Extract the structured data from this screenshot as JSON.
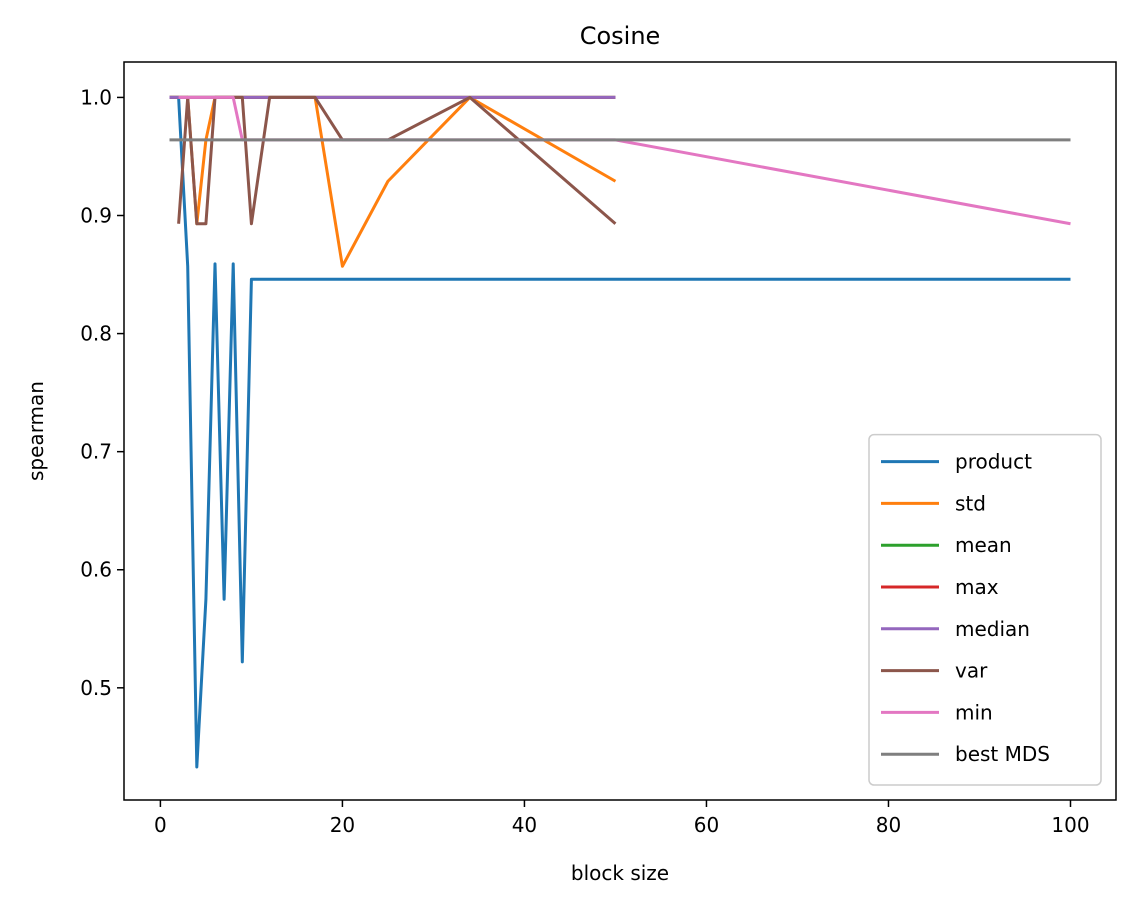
{
  "chart_data": {
    "type": "line",
    "title": "Cosine",
    "xlabel": "block size",
    "ylabel": "spearman",
    "xlim": [
      -4,
      105
    ],
    "ylim": [
      0.405,
      1.03
    ],
    "xticks": [
      0,
      20,
      40,
      60,
      80,
      100
    ],
    "xtick_labels": [
      "0",
      "20",
      "40",
      "60",
      "80",
      "100"
    ],
    "yticks": [
      0.5,
      0.6,
      0.7,
      0.8,
      0.9,
      1.0
    ],
    "ytick_labels": [
      "0.5",
      "0.6",
      "0.7",
      "0.8",
      "0.9",
      "1.0"
    ],
    "grid": false,
    "legend_position": "lower-right",
    "series": [
      {
        "name": "product",
        "color": "#1f77b4",
        "x": [
          1,
          2,
          3,
          4,
          5,
          6,
          7,
          8,
          9,
          10,
          12,
          17,
          20,
          25,
          34,
          50,
          100
        ],
        "y": [
          1.0,
          1.0,
          0.857,
          0.433,
          0.575,
          0.859,
          0.575,
          0.859,
          0.522,
          0.846,
          0.846,
          0.846,
          0.846,
          0.846,
          0.846,
          0.846,
          0.846
        ]
      },
      {
        "name": "std",
        "color": "#ff7f0e",
        "x": [
          1,
          2,
          3,
          4,
          5,
          6,
          7,
          8,
          9,
          10,
          12,
          17,
          20,
          25,
          34,
          50
        ],
        "y": [
          1.0,
          1.0,
          1.0,
          0.893,
          0.964,
          1.0,
          1.0,
          1.0,
          1.0,
          1.0,
          1.0,
          1.0,
          0.857,
          0.929,
          1.0,
          0.929
        ]
      },
      {
        "name": "mean",
        "color": "#2ca02c",
        "x": [
          1,
          2,
          3,
          4,
          5,
          6,
          7,
          8,
          9,
          10,
          12,
          17,
          20,
          25,
          34,
          50
        ],
        "y": [
          1.0,
          1.0,
          1.0,
          1.0,
          1.0,
          1.0,
          1.0,
          1.0,
          1.0,
          1.0,
          1.0,
          1.0,
          1.0,
          1.0,
          1.0,
          1.0
        ]
      },
      {
        "name": "max",
        "color": "#d62728",
        "x": [
          1,
          2,
          3,
          4,
          5,
          6,
          7,
          8,
          9,
          10,
          12,
          17,
          20,
          25,
          34,
          50
        ],
        "y": [
          1.0,
          1.0,
          1.0,
          1.0,
          1.0,
          1.0,
          1.0,
          1.0,
          1.0,
          1.0,
          1.0,
          1.0,
          1.0,
          1.0,
          1.0,
          1.0
        ]
      },
      {
        "name": "median",
        "color": "#9467bd",
        "x": [
          1,
          2,
          3,
          4,
          5,
          6,
          7,
          8,
          9,
          10,
          12,
          17,
          20,
          25,
          34,
          50
        ],
        "y": [
          1.0,
          1.0,
          1.0,
          1.0,
          1.0,
          1.0,
          1.0,
          1.0,
          1.0,
          1.0,
          1.0,
          1.0,
          1.0,
          1.0,
          1.0,
          1.0
        ]
      },
      {
        "name": "var",
        "color": "#8c564b",
        "x": [
          2,
          3,
          4,
          5,
          6,
          7,
          8,
          9,
          10,
          12,
          17,
          20,
          25,
          34,
          50
        ],
        "y": [
          0.893,
          1.0,
          0.893,
          0.893,
          1.0,
          1.0,
          1.0,
          1.0,
          0.893,
          1.0,
          1.0,
          0.964,
          0.964,
          1.0,
          0.893
        ]
      },
      {
        "name": "min",
        "color": "#e377c2",
        "x": [
          2,
          3,
          4,
          5,
          6,
          7,
          8,
          9,
          10,
          12,
          17,
          20,
          25,
          34,
          50,
          100
        ],
        "y": [
          1.0,
          1.0,
          1.0,
          1.0,
          1.0,
          1.0,
          1.0,
          0.964,
          0.964,
          0.964,
          0.964,
          0.964,
          0.964,
          0.964,
          0.964,
          0.893
        ]
      },
      {
        "name": "best MDS",
        "color": "#7f7f7f",
        "x": [
          1,
          100
        ],
        "y": [
          0.964,
          0.964
        ]
      }
    ]
  }
}
